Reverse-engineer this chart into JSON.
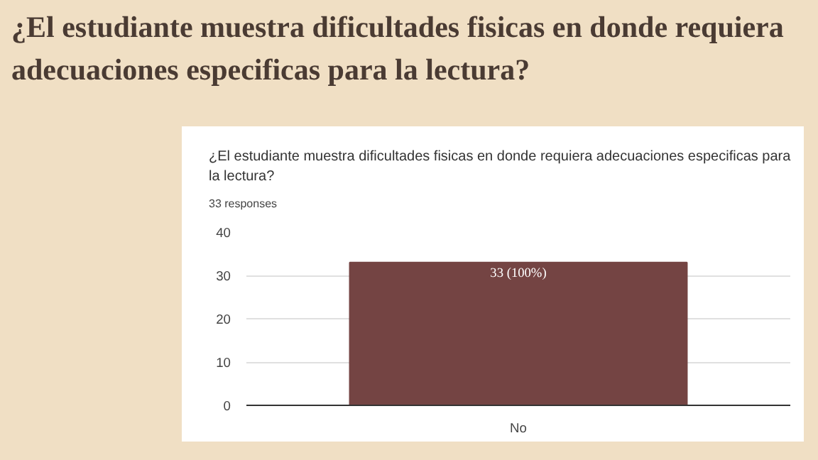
{
  "chart_data": {
    "type": "bar",
    "title": "¿El estudiante muestra dificultades fisicas en donde requiera adecuaciones especificas para la lectura?",
    "subtitle": "¿El estudiante muestra dificultades fisicas en donde requiera adecuaciones especificas para la lectura?",
    "annotations": [
      "33 responses"
    ],
    "categories": [
      "No"
    ],
    "values": [
      33
    ],
    "color": "#744443",
    "value_labels": [
      "33 (100%)"
    ],
    "ylim": [
      0,
      40
    ],
    "yticks": [
      0,
      10,
      20,
      30,
      40
    ],
    "grid": "y"
  }
}
